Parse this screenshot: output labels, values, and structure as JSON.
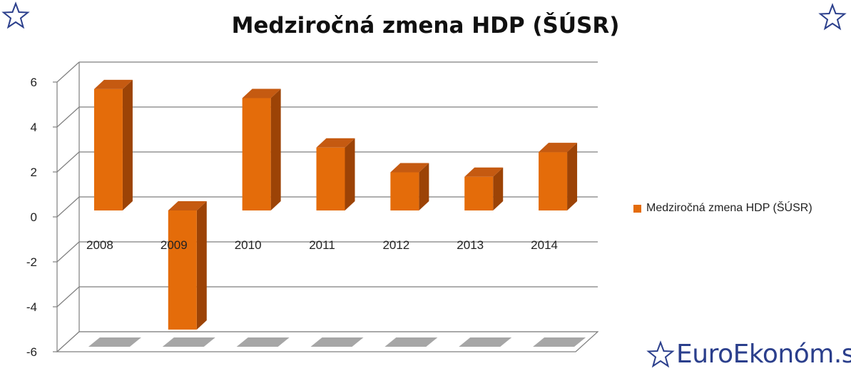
{
  "chart_data": {
    "type": "bar",
    "title": "Medziročná zmena HDP (ŠÚSR)",
    "categories": [
      "2008",
      "2009",
      "2010",
      "2011",
      "2012",
      "2013",
      "2014"
    ],
    "series": [
      {
        "name": "Medziročná zmena HDP (ŠÚSR)",
        "values": [
          5.4,
          -5.3,
          5.0,
          2.8,
          1.7,
          1.5,
          2.6
        ]
      }
    ],
    "ylim": [
      -6,
      6
    ],
    "yticks": [
      "6",
      "4",
      "2",
      "0",
      "-2",
      "-4",
      "-6"
    ],
    "grid": true,
    "legend": "right",
    "style": "3d-column",
    "colors": {
      "bar": "#e46c0a",
      "bar_top": "#c55a11",
      "bar_side": "#9c4306",
      "floor": "#a6a6a6",
      "grid": "#7f7f7f"
    }
  },
  "watermark": {
    "text": "EuroEkonóm.sk",
    "icon": "star-icon"
  },
  "decorations": {
    "corner_icon": "star-icon"
  }
}
